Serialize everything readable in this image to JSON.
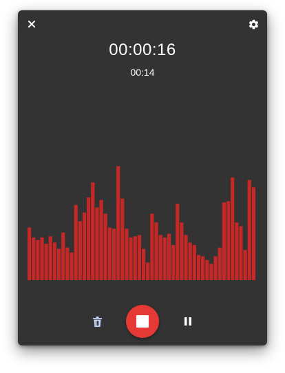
{
  "recorder": {
    "elapsed": "00:00:16",
    "sub_time": "00:14"
  },
  "icons": {
    "close": "close-icon",
    "settings": "gear-icon",
    "delete": "trash-icon",
    "stop": "stop-icon",
    "pause": "pause-icon"
  },
  "colors": {
    "background": "#333333",
    "accent": "#e53935",
    "waveform_bar": "#c62828",
    "icon": "#ffffff",
    "trash_icon": "#c8d6ff"
  },
  "waveform": {
    "levels": [
      0.42,
      0.34,
      0.32,
      0.34,
      0.29,
      0.35,
      0.3,
      0.25,
      0.38,
      0.26,
      0.22,
      0.6,
      0.47,
      0.54,
      0.66,
      0.78,
      0.58,
      0.64,
      0.53,
      0.42,
      0.41,
      0.91,
      0.65,
      0.41,
      0.34,
      0.35,
      0.36,
      0.25,
      0.14,
      0.53,
      0.46,
      0.36,
      0.34,
      0.37,
      0.28,
      0.61,
      0.46,
      0.36,
      0.3,
      0.28,
      0.2,
      0.19,
      0.16,
      0.13,
      0.19,
      0.26,
      0.62,
      0.63,
      0.82,
      0.46,
      0.43,
      0.24,
      0.8,
      0.74
    ]
  }
}
